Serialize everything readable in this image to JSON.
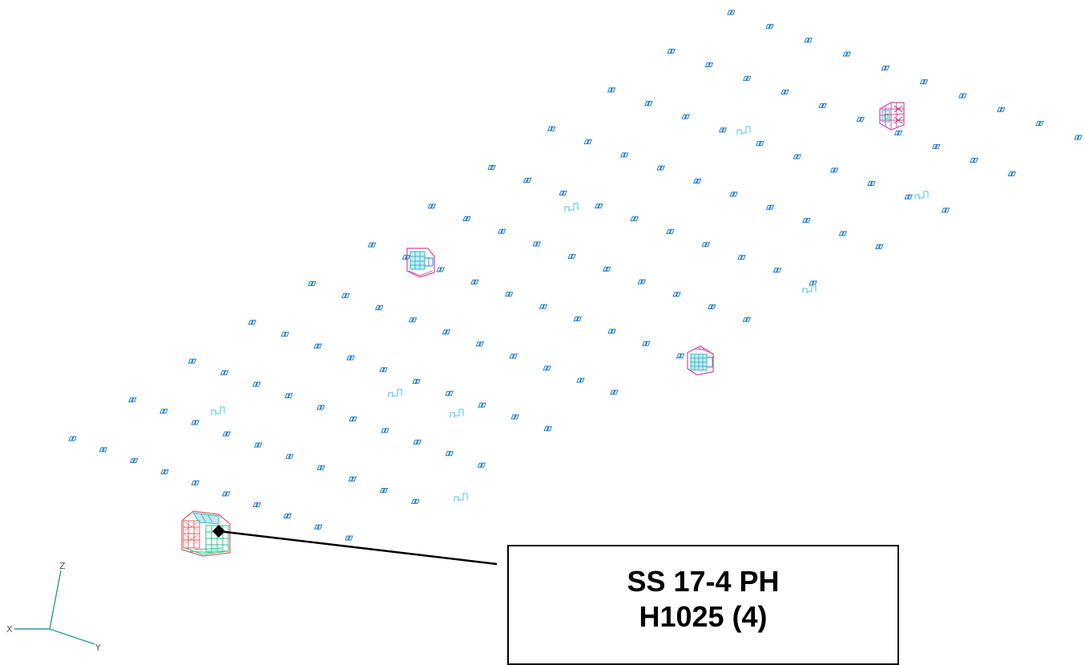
{
  "colors": {
    "marker": "#1f7fd6",
    "fastener": "#49c2e8",
    "axis_line": "#2a9a9a",
    "leader": "#000000",
    "block_cyan": "#2fb7c9",
    "block_magenta": "#d2479e",
    "block_red": "#e06060",
    "block_green": "#2ec28a"
  },
  "axes": {
    "x_label": "X",
    "y_label": "Y",
    "z_label": "Z"
  },
  "callout": {
    "line1": "SS 17-4 PH",
    "line2": "H1025 (4)"
  },
  "grid": {
    "rows": 10,
    "cols": 12
  },
  "icons": {
    "node_marker": "link-marker-icon",
    "fastener": "bracket-icon",
    "block": "wireframe-block-icon",
    "anchor": "diamond-icon"
  }
}
